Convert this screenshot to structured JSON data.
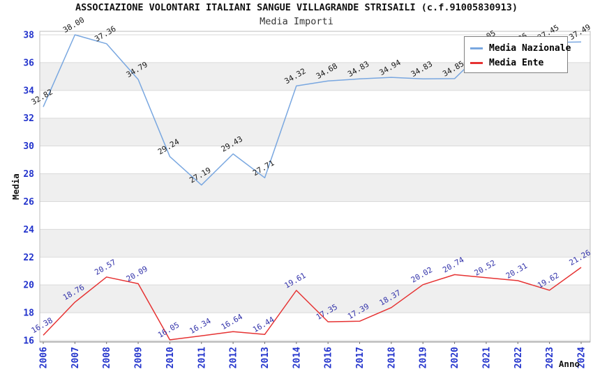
{
  "chart_data": {
    "type": "line",
    "title": "ASSOCIAZIONE VOLONTARI ITALIANI SANGUE VILLAGRANDE STRISAILI (c.f.91005830913)",
    "subtitle": "Media Importi",
    "xlabel": "Anno",
    "ylabel": "Media",
    "categories": [
      "2006",
      "2007",
      "2008",
      "2009",
      "2010",
      "2011",
      "2012",
      "2013",
      "2014",
      "2016",
      "2017",
      "2018",
      "2019",
      "2020",
      "2021",
      "2022",
      "2023",
      "2024"
    ],
    "series": [
      {
        "name": "Media Nazionale",
        "color": "#79a7e0",
        "label_color": "#1a1a1a",
        "values": [
          32.82,
          38.0,
          37.36,
          34.79,
          29.24,
          27.19,
          29.43,
          27.71,
          34.32,
          34.68,
          34.83,
          34.94,
          34.83,
          34.85,
          37.05,
          36.86,
          37.45,
          37.49
        ]
      },
      {
        "name": "Media Ente",
        "color": "#e63232",
        "label_color": "#3333aa",
        "values": [
          16.38,
          18.76,
          20.57,
          20.09,
          16.05,
          16.34,
          16.64,
          16.44,
          19.61,
          17.35,
          17.39,
          18.37,
          20.02,
          20.74,
          20.52,
          20.31,
          19.62,
          21.26
        ]
      }
    ],
    "ylim": [
      16,
      38
    ],
    "ytick_step": 2,
    "yticks": [
      16,
      18,
      20,
      22,
      24,
      26,
      28,
      30,
      32,
      34,
      36,
      38
    ],
    "grid": "horizontal-bands-alternating",
    "band_color": "#efefef",
    "gridline_color": "#dadada",
    "plot_border_color": "#bcbcbc",
    "axis_line_color": "#707070",
    "tick_label_color": "#2233cc",
    "legend_position": "top-right"
  }
}
